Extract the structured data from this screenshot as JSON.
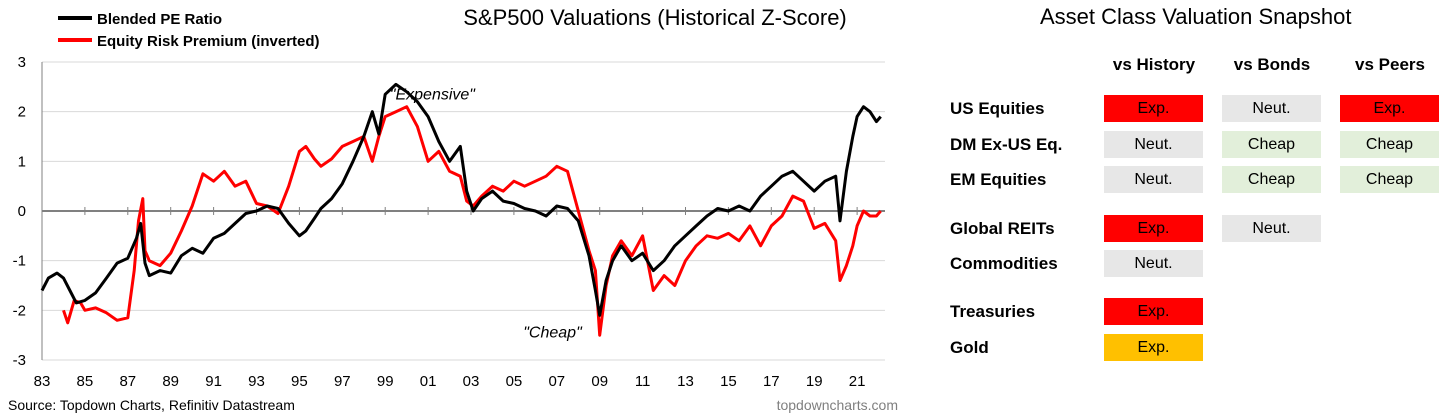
{
  "chart_data": {
    "type": "line",
    "title": "S&P500 Valuations (Historical Z-Score)",
    "source": "Source: Topdown Charts, Refinitiv Datastream",
    "watermark": "topdowncharts.com",
    "xlim": [
      1983,
      2022.3
    ],
    "ylim": [
      -3,
      3
    ],
    "x_ticks": [
      1983,
      1985,
      1987,
      1989,
      1991,
      1993,
      1995,
      1997,
      1999,
      2001,
      2003,
      2005,
      2007,
      2009,
      2011,
      2013,
      2015,
      2017,
      2019,
      2021
    ],
    "x_tick_labels": [
      "83",
      "85",
      "87",
      "89",
      "91",
      "93",
      "95",
      "97",
      "99",
      "01",
      "03",
      "05",
      "07",
      "09",
      "11",
      "13",
      "15",
      "17",
      "19",
      "21"
    ],
    "y_ticks": [
      3,
      2,
      1,
      0,
      -1,
      -2,
      -3
    ],
    "grid": true,
    "legend_position": "top-left",
    "annotations": [
      {
        "text": "\"Expensive\"",
        "x": 2001.2,
        "y": 2.35
      },
      {
        "text": "\"Cheap\"",
        "x": 2006.8,
        "y": -2.45
      }
    ],
    "series": [
      {
        "name": "Blended PE Ratio",
        "color": "#000000",
        "points": [
          [
            1983.0,
            -1.6
          ],
          [
            1983.3,
            -1.35
          ],
          [
            1983.7,
            -1.25
          ],
          [
            1984.0,
            -1.35
          ],
          [
            1984.3,
            -1.6
          ],
          [
            1984.6,
            -1.85
          ],
          [
            1985.0,
            -1.8
          ],
          [
            1985.5,
            -1.65
          ],
          [
            1986.0,
            -1.35
          ],
          [
            1986.5,
            -1.05
          ],
          [
            1987.0,
            -0.95
          ],
          [
            1987.4,
            -0.55
          ],
          [
            1987.6,
            -0.25
          ],
          [
            1987.8,
            -1.05
          ],
          [
            1988.0,
            -1.3
          ],
          [
            1988.5,
            -1.2
          ],
          [
            1989.0,
            -1.25
          ],
          [
            1989.5,
            -0.9
          ],
          [
            1990.0,
            -0.75
          ],
          [
            1990.5,
            -0.85
          ],
          [
            1991.0,
            -0.55
          ],
          [
            1991.5,
            -0.45
          ],
          [
            1992.0,
            -0.25
          ],
          [
            1992.5,
            -0.05
          ],
          [
            1993.0,
            0.0
          ],
          [
            1993.5,
            0.1
          ],
          [
            1994.0,
            0.05
          ],
          [
            1994.5,
            -0.25
          ],
          [
            1995.0,
            -0.5
          ],
          [
            1995.3,
            -0.4
          ],
          [
            1995.7,
            -0.15
          ],
          [
            1996.0,
            0.05
          ],
          [
            1996.5,
            0.25
          ],
          [
            1997.0,
            0.55
          ],
          [
            1997.5,
            1.0
          ],
          [
            1998.0,
            1.5
          ],
          [
            1998.4,
            2.0
          ],
          [
            1998.7,
            1.55
          ],
          [
            1999.0,
            2.35
          ],
          [
            1999.5,
            2.55
          ],
          [
            2000.0,
            2.4
          ],
          [
            2000.5,
            2.2
          ],
          [
            2001.0,
            1.9
          ],
          [
            2001.5,
            1.4
          ],
          [
            2002.0,
            1.0
          ],
          [
            2002.5,
            1.3
          ],
          [
            2002.8,
            0.4
          ],
          [
            2003.1,
            0.0
          ],
          [
            2003.5,
            0.25
          ],
          [
            2004.0,
            0.4
          ],
          [
            2004.5,
            0.2
          ],
          [
            2005.0,
            0.15
          ],
          [
            2005.5,
            0.05
          ],
          [
            2006.0,
            0.0
          ],
          [
            2006.5,
            -0.1
          ],
          [
            2007.0,
            0.1
          ],
          [
            2007.5,
            0.05
          ],
          [
            2008.0,
            -0.2
          ],
          [
            2008.5,
            -0.9
          ],
          [
            2008.8,
            -1.6
          ],
          [
            2009.0,
            -2.1
          ],
          [
            2009.3,
            -1.4
          ],
          [
            2009.6,
            -1.0
          ],
          [
            2010.0,
            -0.7
          ],
          [
            2010.5,
            -1.0
          ],
          [
            2011.0,
            -0.85
          ],
          [
            2011.5,
            -1.2
          ],
          [
            2012.0,
            -1.0
          ],
          [
            2012.5,
            -0.7
          ],
          [
            2013.0,
            -0.5
          ],
          [
            2013.5,
            -0.3
          ],
          [
            2014.0,
            -0.1
          ],
          [
            2014.5,
            0.05
          ],
          [
            2015.0,
            0.0
          ],
          [
            2015.5,
            0.1
          ],
          [
            2016.0,
            0.0
          ],
          [
            2016.5,
            0.3
          ],
          [
            2017.0,
            0.5
          ],
          [
            2017.5,
            0.7
          ],
          [
            2018.0,
            0.8
          ],
          [
            2018.5,
            0.6
          ],
          [
            2019.0,
            0.4
          ],
          [
            2019.5,
            0.6
          ],
          [
            2020.0,
            0.7
          ],
          [
            2020.2,
            -0.2
          ],
          [
            2020.5,
            0.8
          ],
          [
            2020.8,
            1.5
          ],
          [
            2021.0,
            1.9
          ],
          [
            2021.3,
            2.1
          ],
          [
            2021.6,
            2.0
          ],
          [
            2021.9,
            1.8
          ],
          [
            2022.1,
            1.9
          ]
        ]
      },
      {
        "name": "Equity Risk Premium (inverted)",
        "color": "#ff0000",
        "points": [
          [
            1984.0,
            -2.0
          ],
          [
            1984.2,
            -2.25
          ],
          [
            1984.5,
            -1.8
          ],
          [
            1984.8,
            -1.85
          ],
          [
            1985.0,
            -2.0
          ],
          [
            1985.5,
            -1.95
          ],
          [
            1986.0,
            -2.05
          ],
          [
            1986.5,
            -2.2
          ],
          [
            1987.0,
            -2.15
          ],
          [
            1987.3,
            -1.2
          ],
          [
            1987.5,
            -0.2
          ],
          [
            1987.7,
            0.25
          ],
          [
            1987.8,
            -0.8
          ],
          [
            1988.0,
            -1.0
          ],
          [
            1988.5,
            -1.1
          ],
          [
            1989.0,
            -0.85
          ],
          [
            1989.5,
            -0.4
          ],
          [
            1990.0,
            0.1
          ],
          [
            1990.5,
            0.75
          ],
          [
            1991.0,
            0.6
          ],
          [
            1991.5,
            0.8
          ],
          [
            1992.0,
            0.5
          ],
          [
            1992.5,
            0.6
          ],
          [
            1993.0,
            0.15
          ],
          [
            1993.5,
            0.1
          ],
          [
            1994.0,
            -0.05
          ],
          [
            1994.5,
            0.5
          ],
          [
            1995.0,
            1.2
          ],
          [
            1995.3,
            1.3
          ],
          [
            1995.7,
            1.05
          ],
          [
            1996.0,
            0.9
          ],
          [
            1996.5,
            1.05
          ],
          [
            1997.0,
            1.3
          ],
          [
            1997.5,
            1.4
          ],
          [
            1998.0,
            1.5
          ],
          [
            1998.4,
            1.0
          ],
          [
            1998.7,
            1.5
          ],
          [
            1999.0,
            1.9
          ],
          [
            1999.5,
            2.0
          ],
          [
            2000.0,
            2.1
          ],
          [
            2000.5,
            1.7
          ],
          [
            2001.0,
            1.0
          ],
          [
            2001.5,
            1.2
          ],
          [
            2002.0,
            0.8
          ],
          [
            2002.5,
            0.7
          ],
          [
            2002.8,
            0.2
          ],
          [
            2003.1,
            0.1
          ],
          [
            2003.5,
            0.3
          ],
          [
            2004.0,
            0.5
          ],
          [
            2004.5,
            0.4
          ],
          [
            2005.0,
            0.6
          ],
          [
            2005.5,
            0.5
          ],
          [
            2006.0,
            0.6
          ],
          [
            2006.5,
            0.7
          ],
          [
            2007.0,
            0.9
          ],
          [
            2007.5,
            0.8
          ],
          [
            2008.0,
            0.0
          ],
          [
            2008.5,
            -0.8
          ],
          [
            2008.8,
            -1.2
          ],
          [
            2009.0,
            -2.5
          ],
          [
            2009.3,
            -1.5
          ],
          [
            2009.6,
            -0.9
          ],
          [
            2010.0,
            -0.6
          ],
          [
            2010.5,
            -0.9
          ],
          [
            2011.0,
            -0.5
          ],
          [
            2011.5,
            -1.6
          ],
          [
            2012.0,
            -1.3
          ],
          [
            2012.5,
            -1.5
          ],
          [
            2013.0,
            -1.0
          ],
          [
            2013.5,
            -0.7
          ],
          [
            2014.0,
            -0.5
          ],
          [
            2014.5,
            -0.55
          ],
          [
            2015.0,
            -0.45
          ],
          [
            2015.5,
            -0.6
          ],
          [
            2016.0,
            -0.3
          ],
          [
            2016.5,
            -0.7
          ],
          [
            2017.0,
            -0.3
          ],
          [
            2017.5,
            -0.1
          ],
          [
            2018.0,
            0.3
          ],
          [
            2018.5,
            0.2
          ],
          [
            2019.0,
            -0.35
          ],
          [
            2019.5,
            -0.25
          ],
          [
            2020.0,
            -0.6
          ],
          [
            2020.2,
            -1.4
          ],
          [
            2020.5,
            -1.1
          ],
          [
            2020.8,
            -0.7
          ],
          [
            2021.0,
            -0.3
          ],
          [
            2021.3,
            0.0
          ],
          [
            2021.6,
            -0.1
          ],
          [
            2021.9,
            -0.1
          ],
          [
            2022.1,
            0.0
          ]
        ]
      }
    ]
  },
  "snapshot": {
    "title": "Asset Class Valuation Snapshot",
    "columns": [
      "vs History",
      "vs Bonds",
      "vs Peers"
    ],
    "colors": {
      "Exp.": "#ff0000",
      "Neut.": "#e7e7e7",
      "Cheap": "#e2efda",
      "Exp. (gold)": "#ffc000"
    },
    "rows": [
      {
        "label": "US Equities",
        "cells": [
          "Exp.",
          "Neut.",
          "Exp."
        ],
        "tones": [
          "exp",
          "neut",
          "exp"
        ]
      },
      {
        "label": "DM Ex-US Eq.",
        "cells": [
          "Neut.",
          "Cheap",
          "Cheap"
        ],
        "tones": [
          "neut",
          "cheap",
          "cheap"
        ]
      },
      {
        "label": "EM Equities",
        "cells": [
          "Neut.",
          "Cheap",
          "Cheap"
        ],
        "tones": [
          "neut",
          "cheap",
          "cheap"
        ]
      },
      {
        "label": "Global REITs",
        "cells": [
          "Exp.",
          "Neut.",
          ""
        ],
        "tones": [
          "exp",
          "neut",
          ""
        ]
      },
      {
        "label": "Commodities",
        "cells": [
          "Neut.",
          "",
          ""
        ],
        "tones": [
          "neut",
          "",
          ""
        ]
      },
      {
        "label": "Treasuries",
        "cells": [
          "Exp.",
          "",
          ""
        ],
        "tones": [
          "exp",
          "",
          ""
        ]
      },
      {
        "label": "Gold",
        "cells": [
          "Exp.",
          "",
          ""
        ],
        "tones": [
          "gold",
          "",
          ""
        ]
      }
    ]
  }
}
